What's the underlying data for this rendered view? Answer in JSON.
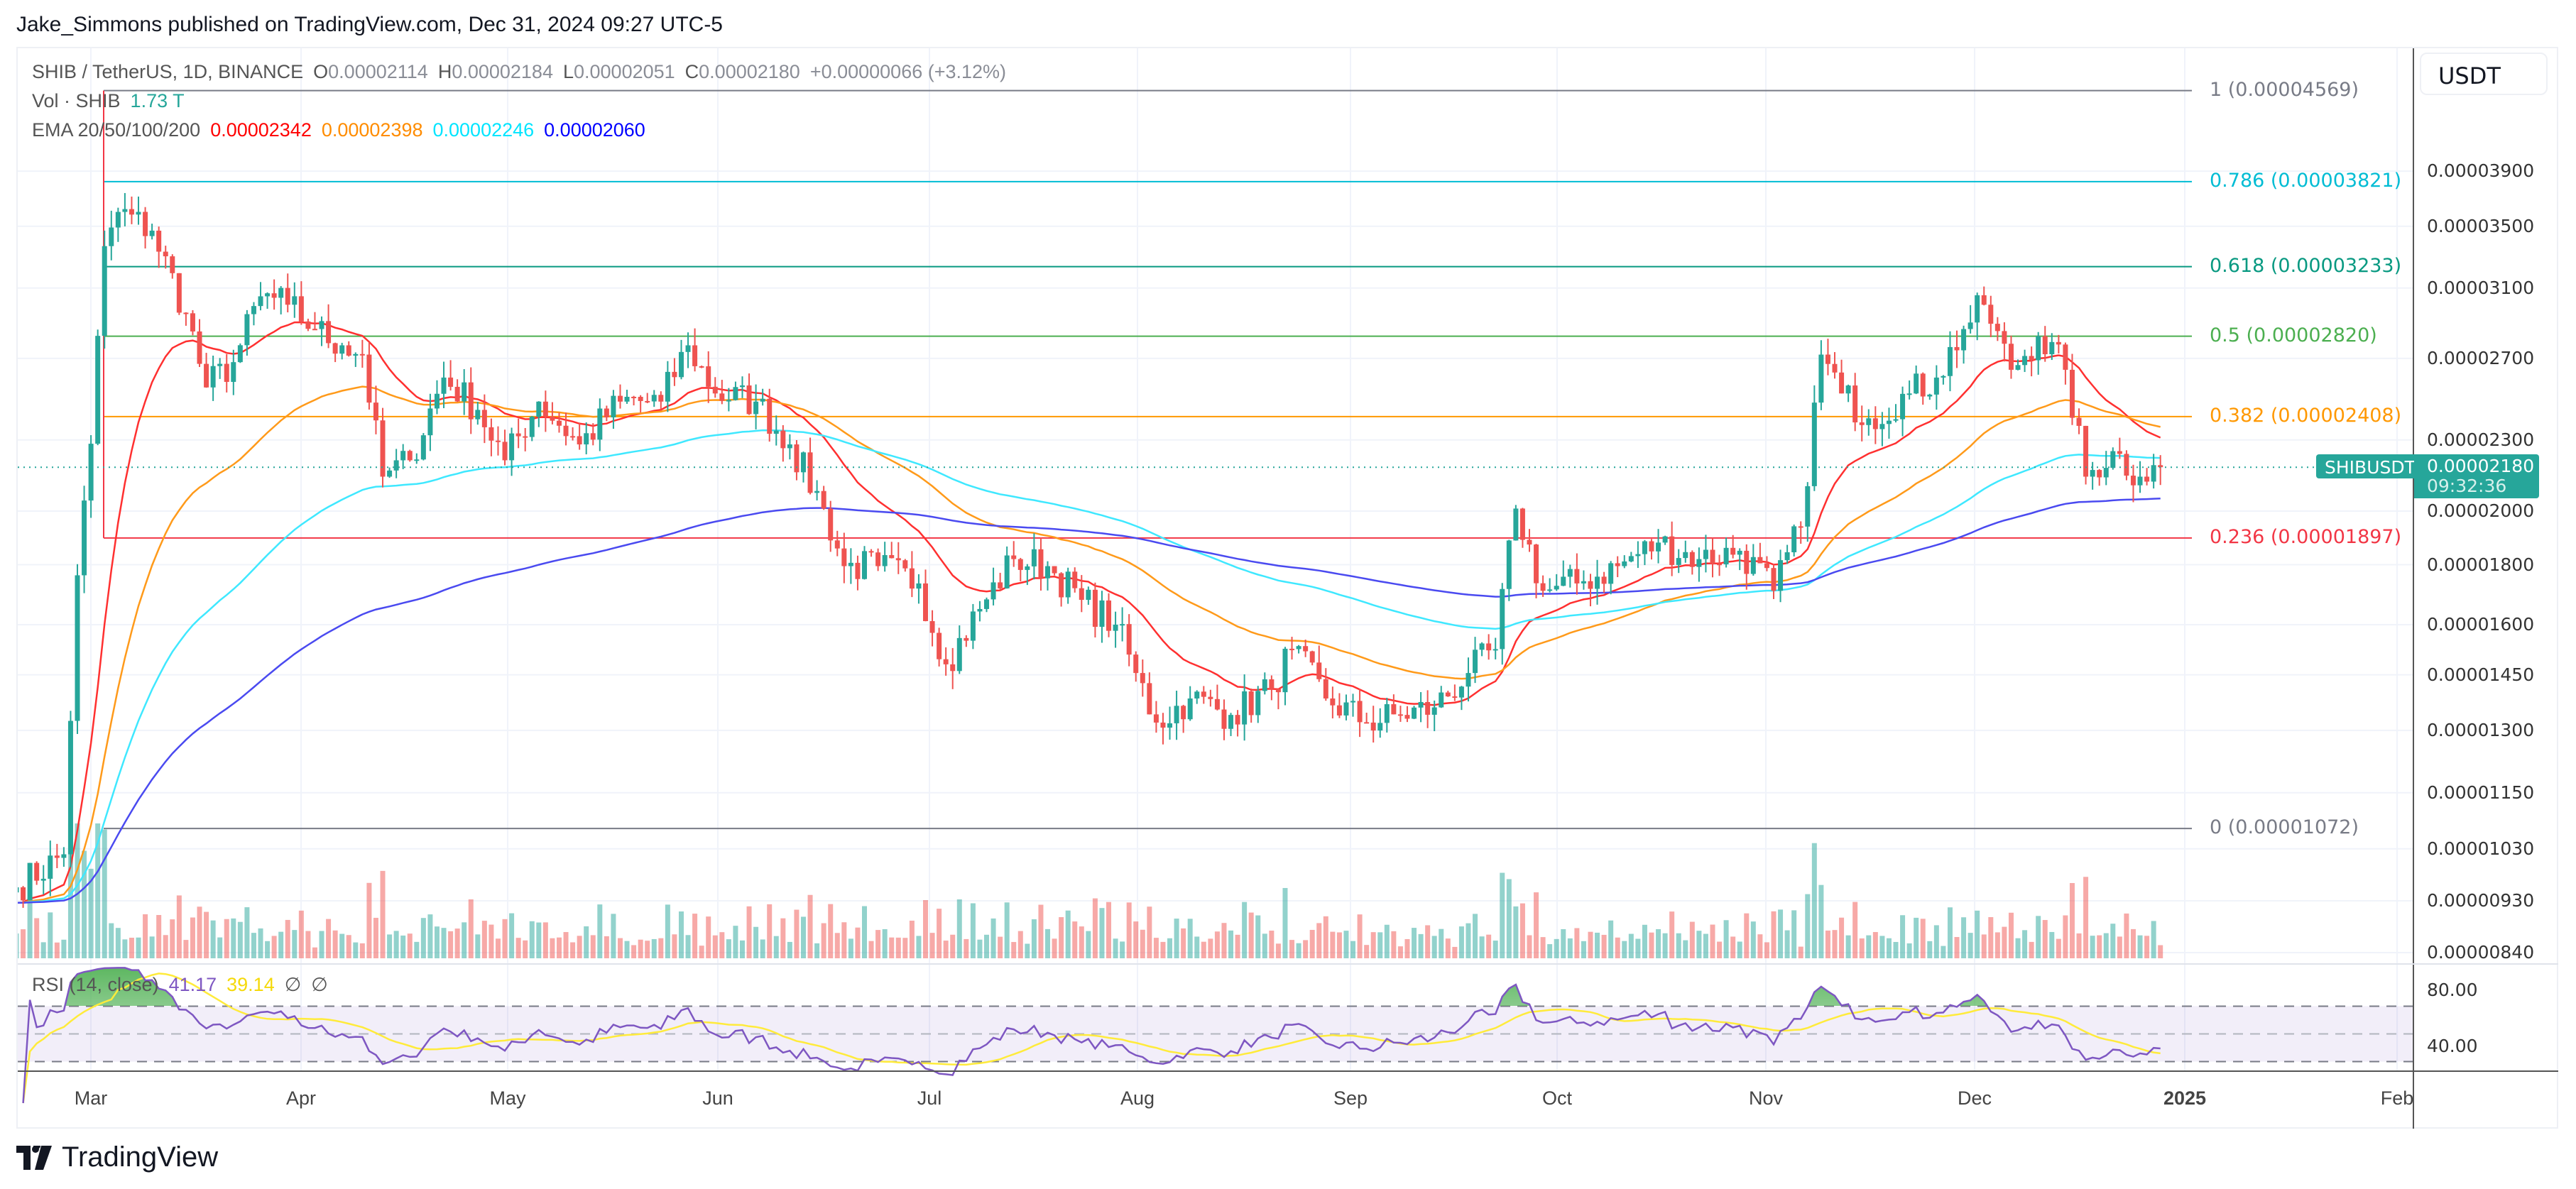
{
  "header": {
    "published": "Jake_Simmons published on TradingView.com, Dec 31, 2024 09:27 UTC-5"
  },
  "legend": {
    "symbol": "SHIB / TetherUS, 1D, BINANCE",
    "open_label": "O",
    "open": "0.00002114",
    "high_label": "H",
    "high": "0.00002184",
    "low_label": "L",
    "low": "0.00002051",
    "close_label": "C",
    "close": "0.00002180",
    "change": "+0.00000066 (+3.12%)",
    "vol_label": "Vol · SHIB",
    "vol_value": "1.73 T",
    "ema_label": "EMA 20/50/100/200",
    "ema_values": [
      "0.00002342",
      "0.00002398",
      "0.00002246",
      "0.00002060"
    ],
    "ema_colors": [
      "#ff0000",
      "#ff8c00",
      "#00e5ff",
      "#0000ff"
    ],
    "rsi_label": "RSI (14, close)",
    "rsi_value": "41.17",
    "rsi_ma_value": "39.14",
    "rsi_extra": [
      "∅",
      "∅"
    ],
    "rsi_color": "#7e57c2",
    "rsi_ma_color": "#ffeb3b"
  },
  "currency_button": "USDT",
  "current_price": {
    "symbol": "SHIBUSDT",
    "price": "0.00002180",
    "countdown": "09:32:36",
    "color": "#26a69a"
  },
  "brand": "TradingView",
  "chart_data": {
    "type": "candlestick",
    "scale": "log",
    "up_color": "#26a69a",
    "down_color": "#ef5350",
    "price_axis_labels": [
      "0.00003900",
      "0.00003500",
      "0.00003100",
      "0.00002700",
      "0.00002300",
      "0.00002000",
      "0.00001800",
      "0.00001600",
      "0.00001450",
      "0.00001300",
      "0.00001150",
      "0.00001030",
      "0.00000930",
      "0.00000840"
    ],
    "rsi_axis_labels": [
      "80.00",
      "40.00"
    ],
    "time_axis_labels": [
      "Mar",
      "Apr",
      "May",
      "Jun",
      "Jul",
      "Aug",
      "Sep",
      "Oct",
      "Nov",
      "Dec",
      "2025",
      "Feb"
    ],
    "fib_levels": [
      {
        "label": "1 (0.00004569)",
        "price": 4.569e-05,
        "color": "#787b86"
      },
      {
        "label": "0.786 (0.00003821)",
        "price": 3.821e-05,
        "color": "#00bcd4"
      },
      {
        "label": "0.618 (0.00003233)",
        "price": 3.233e-05,
        "color": "#089981"
      },
      {
        "label": "0.5 (0.00002820)",
        "price": 2.82e-05,
        "color": "#4caf50"
      },
      {
        "label": "0.382 (0.00002408)",
        "price": 2.408e-05,
        "color": "#ff9800"
      },
      {
        "label": "0.236 (0.00001897)",
        "price": 1.897e-05,
        "color": "#f23645"
      },
      {
        "label": "0 (0.00001072)",
        "price": 1.072e-05,
        "color": "#787b86"
      }
    ],
    "close_keypoints": [
      [
        "2024-02-19",
        9.55e-06
      ],
      [
        "2024-02-26",
        1.019e-05
      ],
      [
        "2024-02-28",
        1.763e-05
      ],
      [
        "2024-03-01",
        2.283e-05
      ],
      [
        "2024-03-03",
        3.366e-05
      ],
      [
        "2024-03-05",
        3.6e-05
      ],
      [
        "2024-03-10",
        3.47e-05
      ],
      [
        "2024-03-15",
        2.95e-05
      ],
      [
        "2024-03-18",
        2.55e-05
      ],
      [
        "2024-03-22",
        2.68e-05
      ],
      [
        "2024-03-26",
        3.05e-05
      ],
      [
        "2024-03-30",
        3e-05
      ],
      [
        "2024-04-03",
        2.86e-05
      ],
      [
        "2024-04-07",
        2.77e-05
      ],
      [
        "2024-04-10",
        2.72e-05
      ],
      [
        "2024-04-13",
        2.14e-05
      ],
      [
        "2024-04-17",
        2.21e-05
      ],
      [
        "2024-04-22",
        2.6e-05
      ],
      [
        "2024-04-27",
        2.44e-05
      ],
      [
        "2024-05-01",
        2.21e-05
      ],
      [
        "2024-05-06",
        2.48e-05
      ],
      [
        "2024-05-12",
        2.28e-05
      ],
      [
        "2024-05-18",
        2.48e-05
      ],
      [
        "2024-05-24",
        2.48e-05
      ],
      [
        "2024-05-28",
        2.77e-05
      ],
      [
        "2024-06-01",
        2.52e-05
      ],
      [
        "2024-06-07",
        2.48e-05
      ],
      [
        "2024-06-12",
        2.28e-05
      ],
      [
        "2024-06-17",
        2.01e-05
      ],
      [
        "2024-06-20",
        1.795e-05
      ],
      [
        "2024-06-25",
        1.795e-05
      ],
      [
        "2024-07-01",
        1.735e-05
      ],
      [
        "2024-07-05",
        1.48e-05
      ],
      [
        "2024-07-10",
        1.65e-05
      ],
      [
        "2024-07-15",
        1.82e-05
      ],
      [
        "2024-07-20",
        1.795e-05
      ],
      [
        "2024-07-25",
        1.68e-05
      ],
      [
        "2024-07-30",
        1.6e-05
      ],
      [
        "2024-08-02",
        1.455e-05
      ],
      [
        "2024-08-05",
        1.32e-05
      ],
      [
        "2024-08-10",
        1.384e-05
      ],
      [
        "2024-08-16",
        1.34e-05
      ],
      [
        "2024-08-22",
        1.41e-05
      ],
      [
        "2024-08-25",
        1.525e-05
      ],
      [
        "2024-08-30",
        1.384e-05
      ],
      [
        "2024-09-05",
        1.32e-05
      ],
      [
        "2024-09-10",
        1.34e-05
      ],
      [
        "2024-09-15",
        1.36e-05
      ],
      [
        "2024-09-20",
        1.455e-05
      ],
      [
        "2024-09-24",
        1.525e-05
      ],
      [
        "2024-09-27",
        2.01e-05
      ],
      [
        "2024-10-01",
        1.71e-05
      ],
      [
        "2024-10-06",
        1.735e-05
      ],
      [
        "2024-10-12",
        1.795e-05
      ],
      [
        "2024-10-18",
        1.88e-05
      ],
      [
        "2024-10-24",
        1.82e-05
      ],
      [
        "2024-10-30",
        1.85e-05
      ],
      [
        "2024-11-04",
        1.71e-05
      ],
      [
        "2024-11-08",
        1.94e-05
      ],
      [
        "2024-11-11",
        2.72e-05
      ],
      [
        "2024-11-14",
        2.52e-05
      ],
      [
        "2024-11-18",
        2.4e-05
      ],
      [
        "2024-11-24",
        2.52e-05
      ],
      [
        "2024-11-28",
        2.6e-05
      ],
      [
        "2024-12-02",
        2.86e-05
      ],
      [
        "2024-12-05",
        3e-05
      ],
      [
        "2024-12-09",
        2.64e-05
      ],
      [
        "2024-12-13",
        2.82e-05
      ],
      [
        "2024-12-17",
        2.64e-05
      ],
      [
        "2024-12-20",
        2.14e-05
      ],
      [
        "2024-12-24",
        2.25e-05
      ],
      [
        "2024-12-28",
        2.14e-05
      ],
      [
        "2024-12-31",
        2.18e-05
      ]
    ]
  }
}
